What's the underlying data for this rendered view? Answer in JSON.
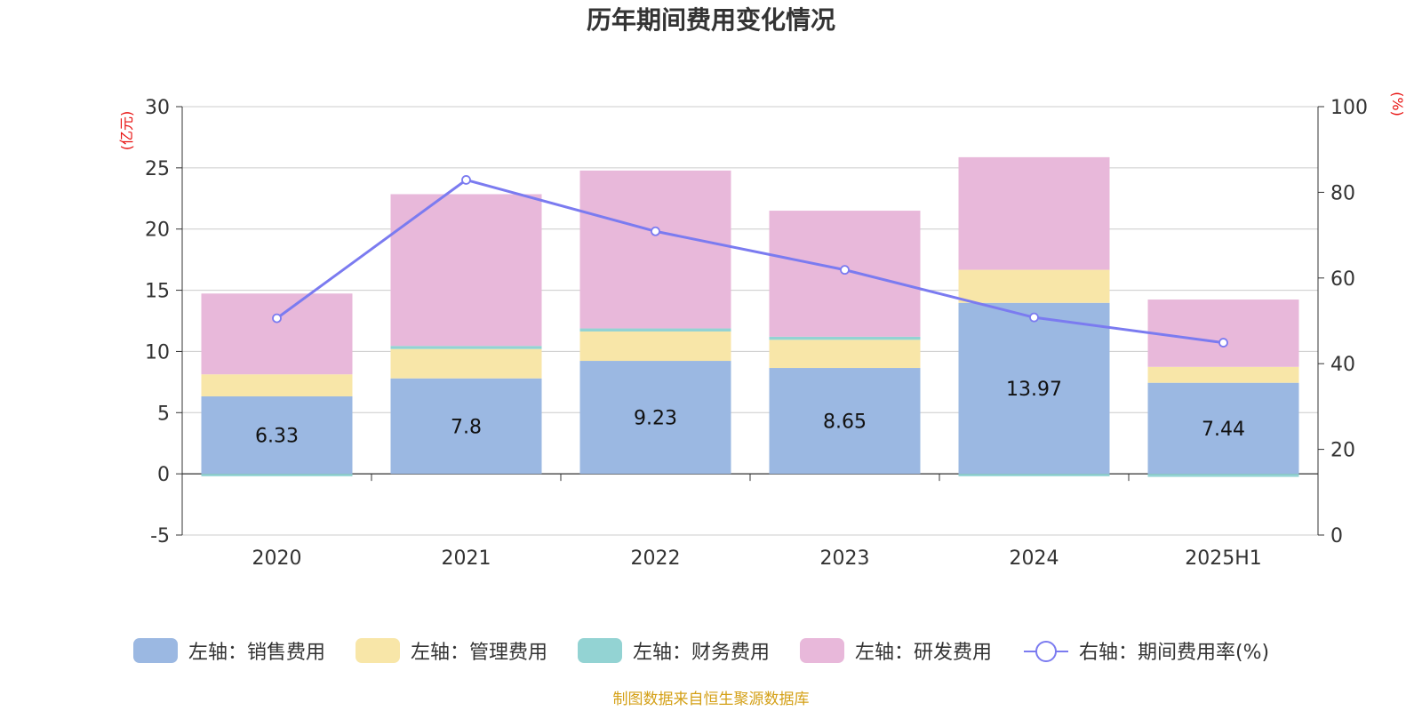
{
  "chart_data": {
    "type": "bar",
    "stacked": true,
    "title": "历年期间费用变化情况",
    "categories": [
      "2020",
      "2021",
      "2022",
      "2023",
      "2024",
      "2025H1"
    ],
    "y_left": {
      "unit": "(亿元)",
      "ylim": [
        -5,
        30
      ],
      "ticks": [
        -5,
        0,
        5,
        10,
        15,
        20,
        25,
        30
      ]
    },
    "y_right": {
      "unit": "(%)",
      "ylim": [
        0,
        100
      ],
      "ticks": [
        0,
        20,
        40,
        60,
        80,
        100
      ]
    },
    "series": [
      {
        "name": "左轴：销售费用",
        "axis": "left",
        "kind": "bar",
        "color": "#9bb8e2",
        "values": [
          6.33,
          7.8,
          9.23,
          8.65,
          13.97,
          7.44
        ],
        "data_labels": [
          "6.33",
          "7.8",
          "9.23",
          "8.65",
          "13.97",
          "7.44"
        ]
      },
      {
        "name": "左轴：管理费用",
        "axis": "left",
        "kind": "bar",
        "color": "#f8e6a8",
        "values": [
          1.8,
          2.4,
          2.4,
          2.3,
          2.7,
          1.3
        ]
      },
      {
        "name": "左轴：财务费用",
        "axis": "left",
        "kind": "bar",
        "color": "#93d3d3",
        "values": [
          -0.2,
          0.25,
          0.25,
          0.25,
          -0.2,
          -0.25
        ]
      },
      {
        "name": "左轴：研发费用",
        "axis": "left",
        "kind": "bar",
        "color": "#e8b8da",
        "values": [
          6.6,
          12.4,
          12.9,
          10.3,
          9.2,
          5.5
        ]
      },
      {
        "name": "右轴：期间费用率(%)",
        "axis": "right",
        "kind": "line",
        "color": "#7b7bf0",
        "values": [
          50.6,
          82.9,
          70.9,
          61.9,
          50.8,
          44.9
        ]
      }
    ],
    "legend_position": "bottom",
    "grid": true,
    "source": "制图数据来自恒生聚源数据库",
    "unit_color": "#e8100f",
    "source_color": "#d4a017"
  }
}
